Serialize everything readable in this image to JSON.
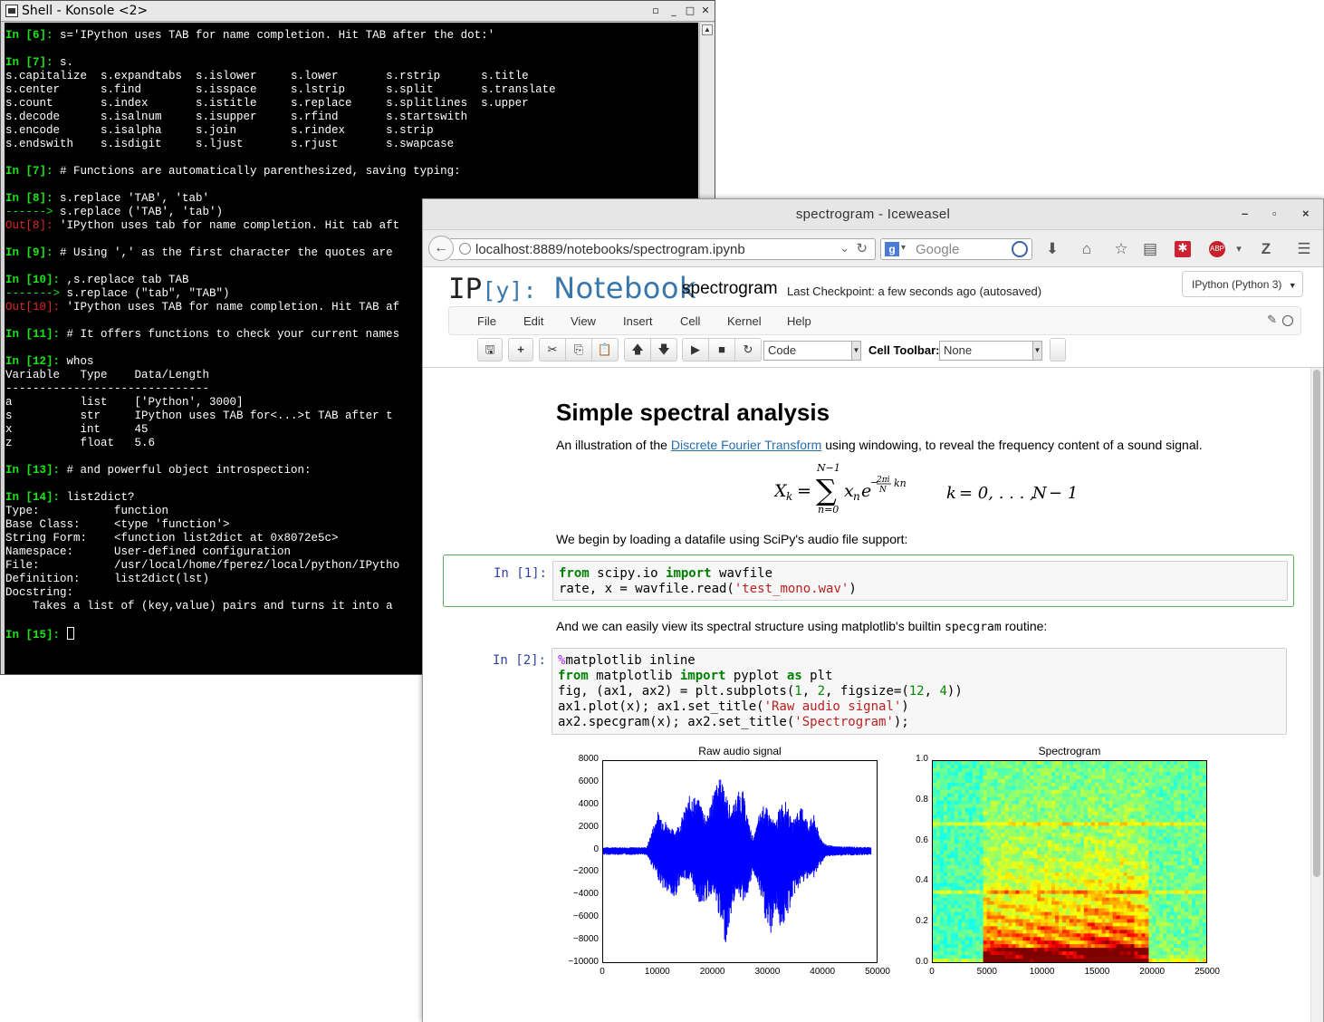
{
  "konsole": {
    "title": "Shell - Konsole <2>",
    "lines": [
      {
        "p": "In [6]: ",
        "t": "s='IPython uses TAB for name completion. Hit TAB after the dot:'"
      },
      {
        "p": "",
        "t": ""
      },
      {
        "p": "In [7]: ",
        "t": "s."
      },
      {
        "p": "",
        "t": "s.capitalize  s.expandtabs  s.islower     s.lower       s.rstrip      s.title"
      },
      {
        "p": "",
        "t": "s.center      s.find        s.isspace     s.lstrip      s.split       s.translate"
      },
      {
        "p": "",
        "t": "s.count       s.index       s.istitle     s.replace     s.splitlines  s.upper"
      },
      {
        "p": "",
        "t": "s.decode      s.isalnum     s.isupper     s.rfind       s.startswith"
      },
      {
        "p": "",
        "t": "s.encode      s.isalpha     s.join        s.rindex      s.strip"
      },
      {
        "p": "",
        "t": "s.endswith    s.isdigit     s.ljust       s.rjust       s.swapcase"
      },
      {
        "p": "",
        "t": ""
      },
      {
        "p": "In [7]: ",
        "t": "# Functions are automatically parenthesized, saving typing:"
      },
      {
        "p": "",
        "t": ""
      },
      {
        "p": "In [8]: ",
        "t": "s.replace 'TAB', 'tab'"
      },
      {
        "c": "------> ",
        "t": "s.replace ('TAB', 'tab')"
      },
      {
        "o": "Out[8]: ",
        "t": "'IPython uses tab for name completion. Hit tab aft"
      },
      {
        "p": "",
        "t": ""
      },
      {
        "p": "In [9]: ",
        "t": "# Using ',' as the first character the quotes are"
      },
      {
        "p": "",
        "t": ""
      },
      {
        "p": "In [10]: ",
        "t": ",s.replace tab TAB"
      },
      {
        "c": "-------> ",
        "t": "s.replace (\"tab\", \"TAB\")"
      },
      {
        "o": "Out[10]: ",
        "t": "'IPython uses TAB for name completion. Hit TAB af"
      },
      {
        "p": "",
        "t": ""
      },
      {
        "p": "In [11]: ",
        "t": "# It offers functions to check your current names"
      },
      {
        "p": "",
        "t": ""
      },
      {
        "p": "In [12]: ",
        "t": "whos"
      },
      {
        "p": "",
        "t": "Variable   Type    Data/Length"
      },
      {
        "p": "",
        "t": "------------------------------"
      },
      {
        "p": "",
        "t": "a          list    ['Python', 3000]"
      },
      {
        "p": "",
        "t": "s          str     IPython uses TAB for<...>t TAB after t"
      },
      {
        "p": "",
        "t": "x          int     45"
      },
      {
        "p": "",
        "t": "z          float   5.6"
      },
      {
        "p": "",
        "t": ""
      },
      {
        "p": "In [13]: ",
        "t": "# and powerful object introspection:"
      },
      {
        "p": "",
        "t": ""
      },
      {
        "p": "In [14]: ",
        "t": "list2dict?"
      },
      {
        "p": "",
        "t": "Type:           function"
      },
      {
        "p": "",
        "t": "Base Class:     <type 'function'>"
      },
      {
        "p": "",
        "t": "String Form:    <function list2dict at 0x8072e5c>"
      },
      {
        "p": "",
        "t": "Namespace:      User-defined configuration"
      },
      {
        "p": "",
        "t": "File:           /usr/local/home/fperez/local/python/IPytho"
      },
      {
        "p": "",
        "t": "Definition:     list2dict(lst)"
      },
      {
        "p": "",
        "t": "Docstring:"
      },
      {
        "p": "",
        "t": "    Takes a list of (key,value) pairs and turns it into a"
      },
      {
        "p": "",
        "t": ""
      },
      {
        "p": "In [15]: ",
        "t": "",
        "cursor": true
      }
    ]
  },
  "browser": {
    "title": "spectrogram - Iceweasel",
    "url": "localhost:8889/notebooks/spectrogram.ipynb",
    "search_placeholder": "Google",
    "window_buttons": [
      "–",
      "▫",
      "×"
    ]
  },
  "notebook": {
    "logo_ip": "IP",
    "logo_y": "[y]:",
    "logo_nb": "Notebook",
    "name": "spectrogram",
    "checkpoint": "Last Checkpoint: a few seconds ago (autosaved)",
    "kernel": "IPython (Python 3)",
    "menu": [
      "File",
      "Edit",
      "View",
      "Insert",
      "Cell",
      "Kernel",
      "Help"
    ],
    "cell_type": "Code",
    "celltoolbar_label": "Cell Toolbar:",
    "celltoolbar_value": "None",
    "heading": "Simple spectral analysis",
    "intro_pre": "An illustration of the ",
    "intro_link": "Discrete Fourier Transform",
    "intro_post": " using windowing, to reveal the frequency content of a sound signal.",
    "load_text": "We begin by loading a datafile using SciPy's audio file support:",
    "view_pre": "And we can easily view its spectral structure using matplotlib's builtin ",
    "view_code": "specgram",
    "view_post": " routine:",
    "cell1_prompt": "In [1]:",
    "cell2_prompt": "In [2]:"
  },
  "chart_data": [
    {
      "type": "line",
      "title": "Raw audio signal",
      "xlim": [
        0,
        50000
      ],
      "ylim": [
        -10000,
        8000
      ],
      "xticks": [
        "0",
        "10000",
        "20000",
        "30000",
        "40000",
        "50000"
      ],
      "yticks": [
        "8000",
        "6000",
        "4000",
        "2000",
        "0",
        "−2000",
        "−4000",
        "−6000",
        "−8000",
        "−10000"
      ],
      "color": "#0000ff",
      "envelope": [
        {
          "x": 0,
          "hi": 300,
          "lo": -400
        },
        {
          "x": 8000,
          "hi": 300,
          "lo": -400
        },
        {
          "x": 9000,
          "hi": 2000,
          "lo": -1500
        },
        {
          "x": 10000,
          "hi": 3500,
          "lo": -2500
        },
        {
          "x": 11000,
          "hi": 3000,
          "lo": -3500
        },
        {
          "x": 12000,
          "hi": 2200,
          "lo": -4000
        },
        {
          "x": 13000,
          "hi": 1800,
          "lo": -4500
        },
        {
          "x": 14000,
          "hi": 2500,
          "lo": -3000
        },
        {
          "x": 15000,
          "hi": 3800,
          "lo": -2500
        },
        {
          "x": 16000,
          "hi": 5200,
          "lo": -3000
        },
        {
          "x": 17000,
          "hi": 4800,
          "lo": -4200
        },
        {
          "x": 18000,
          "hi": 4200,
          "lo": -5000
        },
        {
          "x": 19000,
          "hi": 3000,
          "lo": -4500
        },
        {
          "x": 20000,
          "hi": 5200,
          "lo": -3800
        },
        {
          "x": 21000,
          "hi": 6300,
          "lo": -5500
        },
        {
          "x": 22000,
          "hi": 6700,
          "lo": -8000
        },
        {
          "x": 22500,
          "hi": 5000,
          "lo": -8300
        },
        {
          "x": 23500,
          "hi": 3600,
          "lo": -5500
        },
        {
          "x": 24500,
          "hi": 5200,
          "lo": -3500
        },
        {
          "x": 25500,
          "hi": 5500,
          "lo": -4800
        },
        {
          "x": 26500,
          "hi": 2800,
          "lo": -3800
        },
        {
          "x": 27500,
          "hi": 1000,
          "lo": -2000
        },
        {
          "x": 28500,
          "hi": 3200,
          "lo": -3500
        },
        {
          "x": 29500,
          "hi": 4200,
          "lo": -6000
        },
        {
          "x": 30500,
          "hi": 3200,
          "lo": -8000
        },
        {
          "x": 31500,
          "hi": 2500,
          "lo": -5500
        },
        {
          "x": 32500,
          "hi": 4300,
          "lo": -7000
        },
        {
          "x": 33500,
          "hi": 4400,
          "lo": -6500
        },
        {
          "x": 34500,
          "hi": 2500,
          "lo": -4500
        },
        {
          "x": 35500,
          "hi": 3600,
          "lo": -3500
        },
        {
          "x": 36500,
          "hi": 3900,
          "lo": -3000
        },
        {
          "x": 37500,
          "hi": 2500,
          "lo": -2400
        },
        {
          "x": 38500,
          "hi": 3200,
          "lo": -2500
        },
        {
          "x": 39500,
          "hi": 1500,
          "lo": -1500
        },
        {
          "x": 40500,
          "hi": 600,
          "lo": -700
        },
        {
          "x": 42000,
          "hi": 400,
          "lo": -500
        },
        {
          "x": 49000,
          "hi": 300,
          "lo": -400
        }
      ]
    },
    {
      "type": "heatmap",
      "title": "Spectrogram",
      "xlim": [
        0,
        25000
      ],
      "ylim": [
        0,
        1.0
      ],
      "xticks": [
        "0",
        "5000",
        "10000",
        "15000",
        "20000",
        "25000"
      ],
      "yticks": [
        "1.0",
        "0.8",
        "0.6",
        "0.4",
        "0.2",
        "0.0"
      ],
      "colormap": "jet"
    }
  ]
}
